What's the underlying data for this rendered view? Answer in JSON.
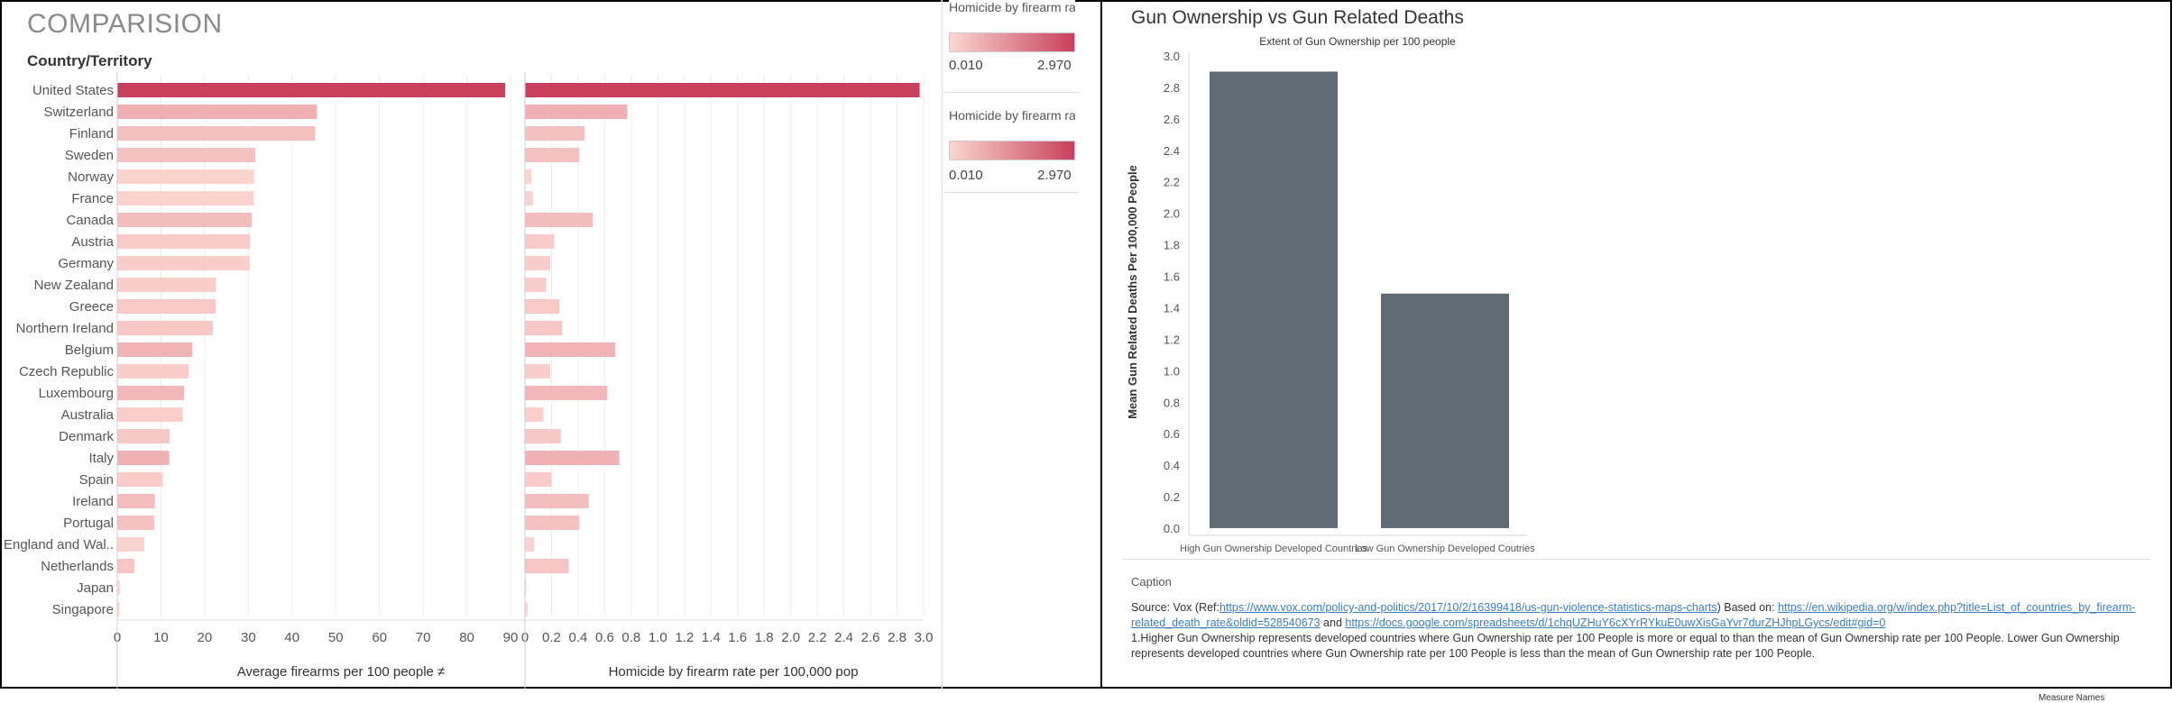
{
  "left_panel": {
    "title": "COMPARISION",
    "row_header": "Country/Territory",
    "legend1_title": "Homicide by firearm rate...",
    "legend2_title": "Homicide by firearm rate...",
    "legend_min": "0.010",
    "legend_max": "2.970"
  },
  "right_panel": {
    "title": "Gun Ownership vs Gun Related Deaths",
    "caption_header": "Caption",
    "caption_source_prefix": "Source: Vox (Ref:",
    "caption_link1": "https://www.vox.com/policy-and-politics/2017/10/2/16399418/us-gun-violence-statistics-maps-charts",
    "caption_mid": ")  Based on: ",
    "caption_link2": "https://en.wikipedia.org/w/index.php?title=List_of_countries_by_firearm-related_death_rate&oldid=528540673",
    "caption_and": " and ",
    "caption_link3": "https://docs.google.com/spreadsheets/d/1chqUZHuY6cXYrRYkuE0uwXisGaYvr7durZHJhpLGycs/edit#gid=0",
    "caption_note": "1.Higher Gun Ownership represents developed countries where Gun Ownership rate per 100 People is more or equal to than the mean of Gun Ownership rate per 100 People. Lower Gun Ownership represents developed countries where Gun Ownership rate per 100 People is less than the mean of Gun Ownership rate per 100 People.",
    "bottom_label": "Measure Names"
  },
  "colors": {
    "ramp_low": "#fcd6d0",
    "ramp_high": "#c8405e",
    "bar_gray": "#5f6b75",
    "grid": "#ececec"
  },
  "chart_data": [
    {
      "type": "bar",
      "orientation": "horizontal",
      "categories": [
        "United States",
        "Switzerland",
        "Finland",
        "Sweden",
        "Norway",
        "France",
        "Canada",
        "Austria",
        "Germany",
        "New Zealand",
        "Greece",
        "Northern Ireland",
        "Belgium",
        "Czech Republic",
        "Luxembourg",
        "Australia",
        "Denmark",
        "Italy",
        "Spain",
        "Ireland",
        "Portugal",
        "England and Wal..",
        "Netherlands",
        "Japan",
        "Singapore"
      ],
      "values": [
        88.8,
        45.7,
        45.3,
        31.6,
        31.3,
        31.2,
        30.8,
        30.4,
        30.3,
        22.6,
        22.5,
        21.9,
        17.2,
        16.3,
        15.3,
        15.0,
        12.0,
        11.9,
        10.4,
        8.6,
        8.5,
        6.2,
        3.9,
        0.6,
        0.5
      ],
      "color_values": [
        2.97,
        0.77,
        0.45,
        0.41,
        0.05,
        0.06,
        0.51,
        0.22,
        0.19,
        0.16,
        0.26,
        0.28,
        0.68,
        0.19,
        0.62,
        0.14,
        0.27,
        0.71,
        0.2,
        0.48,
        0.41,
        0.07,
        0.33,
        0.01,
        0.02
      ],
      "xlabel": "Average firearms per 100 people ≠",
      "xlim": [
        0,
        90
      ],
      "xticks": [
        "0",
        "10",
        "20",
        "30",
        "40",
        "50",
        "60",
        "70",
        "80",
        "90"
      ]
    },
    {
      "type": "bar",
      "orientation": "horizontal",
      "categories": [
        "United States",
        "Switzerland",
        "Finland",
        "Sweden",
        "Norway",
        "France",
        "Canada",
        "Austria",
        "Germany",
        "New Zealand",
        "Greece",
        "Northern Ireland",
        "Belgium",
        "Czech Republic",
        "Luxembourg",
        "Australia",
        "Denmark",
        "Italy",
        "Spain",
        "Ireland",
        "Portugal",
        "England and Wal..",
        "Netherlands",
        "Japan",
        "Singapore"
      ],
      "values": [
        2.97,
        0.77,
        0.45,
        0.41,
        0.05,
        0.06,
        0.51,
        0.22,
        0.19,
        0.16,
        0.26,
        0.28,
        0.68,
        0.19,
        0.62,
        0.14,
        0.27,
        0.71,
        0.2,
        0.48,
        0.41,
        0.07,
        0.33,
        0.01,
        0.02
      ],
      "xlabel": "Homicide by firearm rate per 100,000 pop",
      "xlim": [
        0,
        3.0
      ],
      "xticks": [
        "0",
        "0.2",
        "0.4",
        "0.6",
        "0.8",
        "1.0",
        "1.2",
        "1.4",
        "1.6",
        "1.8",
        "2.0",
        "2.2",
        "2.4",
        "2.6",
        "2.8",
        "3.0"
      ]
    },
    {
      "type": "bar",
      "subtitle": "Extent of Gun Ownership per 100 people",
      "categories": [
        "High Gun Ownership Developed Countries",
        "Low Gun Ownership Developed Coutries"
      ],
      "values": [
        2.9,
        1.49
      ],
      "ylabel": "Mean Gun Related Deaths Per 100,000 People",
      "ylim": [
        0,
        3.0
      ],
      "yticks": [
        "0.0",
        "0.2",
        "0.4",
        "0.6",
        "0.8",
        "1.0",
        "1.2",
        "1.4",
        "1.6",
        "1.8",
        "2.0",
        "2.2",
        "2.4",
        "2.6",
        "2.8",
        "3.0"
      ]
    }
  ]
}
